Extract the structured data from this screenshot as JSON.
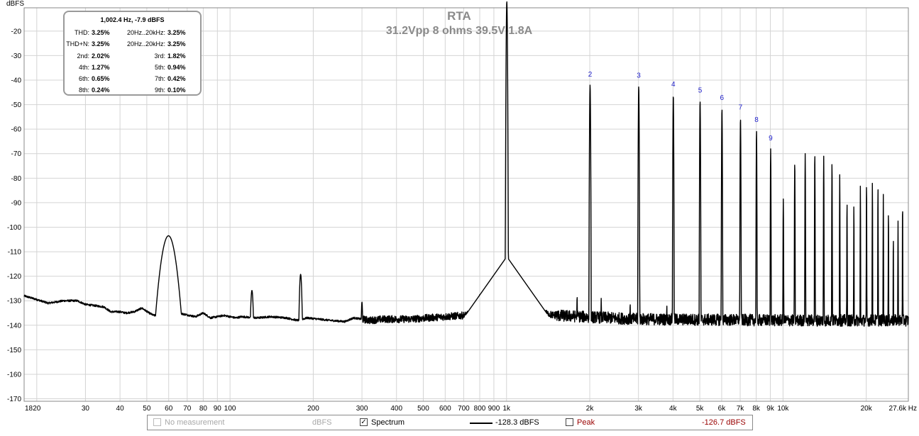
{
  "chart_data": {
    "type": "line",
    "title": "RTA",
    "subtitle": "31.2Vpp 8 ohms 39.5V 1.8A",
    "ylabel": "dBFS",
    "xlabel": "",
    "xscale": "log",
    "xlim": [
      18,
      28400
    ],
    "ylim": [
      -171,
      -10.5
    ],
    "grid": true,
    "y_ticks": [
      -20,
      -30,
      -40,
      -50,
      -60,
      -70,
      -80,
      -90,
      -100,
      -110,
      -120,
      -130,
      -140,
      -150,
      -160,
      -170
    ],
    "x_ticks": [
      {
        "v": 18,
        "l": "18"
      },
      {
        "v": 20,
        "l": "20"
      },
      {
        "v": 30,
        "l": "30"
      },
      {
        "v": 40,
        "l": "40"
      },
      {
        "v": 50,
        "l": "50"
      },
      {
        "v": 60,
        "l": "60"
      },
      {
        "v": 70,
        "l": "70"
      },
      {
        "v": 80,
        "l": "80"
      },
      {
        "v": 90,
        "l": "90"
      },
      {
        "v": 100,
        "l": "100"
      },
      {
        "v": 200,
        "l": "200"
      },
      {
        "v": 300,
        "l": "300"
      },
      {
        "v": 400,
        "l": "400"
      },
      {
        "v": 500,
        "l": "500"
      },
      {
        "v": 600,
        "l": "600"
      },
      {
        "v": 700,
        "l": "700"
      },
      {
        "v": 800,
        "l": "800"
      },
      {
        "v": 900,
        "l": "900"
      },
      {
        "v": 1000,
        "l": "1k"
      },
      {
        "v": 2000,
        "l": "2k"
      },
      {
        "v": 3000,
        "l": "3k"
      },
      {
        "v": 4000,
        "l": "4k"
      },
      {
        "v": 5000,
        "l": "5k"
      },
      {
        "v": 6000,
        "l": "6k"
      },
      {
        "v": 7000,
        "l": "7k"
      },
      {
        "v": 8000,
        "l": "8k"
      },
      {
        "v": 9000,
        "l": "9k"
      },
      {
        "v": 10000,
        "l": "10k"
      },
      {
        "v": 20000,
        "l": "20k"
      },
      {
        "v": 27600,
        "l": "27.6k Hz"
      }
    ],
    "series": [
      {
        "name": "Spectrum",
        "color": "#000000",
        "noise_floor": [
          [
            18,
            -128
          ],
          [
            20,
            -129.5
          ],
          [
            22,
            -131
          ],
          [
            25,
            -130
          ],
          [
            28,
            -130
          ],
          [
            30,
            -131.5
          ],
          [
            35,
            -132.5
          ],
          [
            37,
            -134.5
          ],
          [
            40,
            -134.5
          ],
          [
            42,
            -135
          ],
          [
            45,
            -134.5
          ],
          [
            48,
            -133
          ],
          [
            51,
            -135
          ],
          [
            53,
            -136
          ],
          [
            65,
            -135
          ],
          [
            75,
            -136.5
          ],
          [
            80,
            -135
          ],
          [
            85,
            -137
          ],
          [
            95,
            -136
          ],
          [
            105,
            -137
          ],
          [
            110,
            -136.5
          ],
          [
            125,
            -137
          ],
          [
            140,
            -136.5
          ],
          [
            160,
            -137
          ],
          [
            175,
            -138
          ],
          [
            190,
            -137
          ],
          [
            230,
            -138
          ],
          [
            260,
            -138.5
          ],
          [
            280,
            -137
          ],
          [
            320,
            -138
          ],
          [
            360,
            -137.5
          ],
          [
            450,
            -137.5
          ],
          [
            600,
            -136.5
          ],
          [
            700,
            -136
          ],
          [
            800,
            -135
          ],
          [
            900,
            -131
          ],
          [
            1500,
            -136
          ],
          [
            3000,
            -137.5
          ],
          [
            10000,
            -138
          ],
          [
            28400,
            -138
          ]
        ],
        "peaks": [
          {
            "f": 59.9,
            "db": -103.5,
            "width": 0.045
          },
          {
            "f": 120,
            "db": -125.8,
            "width": 0.009
          },
          {
            "f": 180,
            "db": -119.2,
            "width": 0.008
          },
          {
            "f": 300,
            "db": -130.5,
            "width": 0.005
          },
          {
            "f": 800,
            "db": -127.5,
            "width": 0.003
          },
          {
            "f": 1002.4,
            "db": -7.9,
            "width": 0.003,
            "skirt": true
          },
          {
            "f": 1800,
            "db": -128,
            "width": 0.002
          },
          {
            "f": 2005,
            "db": -42,
            "width": 0.0025
          },
          {
            "f": 2200,
            "db": -129,
            "width": 0.002
          },
          {
            "f": 2800,
            "db": -131,
            "width": 0.002
          },
          {
            "f": 3007,
            "db": -42.5,
            "width": 0.0022
          },
          {
            "f": 3800,
            "db": -132,
            "width": 0.002
          },
          {
            "f": 4010,
            "db": -46,
            "width": 0.002
          },
          {
            "f": 5012,
            "db": -48.5,
            "width": 0.002
          },
          {
            "f": 6014,
            "db": -51.5,
            "width": 0.0018
          },
          {
            "f": 7017,
            "db": -55.5,
            "width": 0.0018
          },
          {
            "f": 8019,
            "db": -60.5,
            "width": 0.0016
          },
          {
            "f": 9022,
            "db": -68,
            "width": 0.0015
          },
          {
            "f": 10024,
            "db": -88.5,
            "width": 0.0014
          },
          {
            "f": 11026,
            "db": -73.5,
            "width": 0.0014
          },
          {
            "f": 12029,
            "db": -70,
            "width": 0.0013
          },
          {
            "f": 13031,
            "db": -70,
            "width": 0.0013
          },
          {
            "f": 14034,
            "db": -71,
            "width": 0.0012
          },
          {
            "f": 15036,
            "db": -73.5,
            "width": 0.0012
          },
          {
            "f": 16038,
            "db": -78.5,
            "width": 0.0011
          },
          {
            "f": 17041,
            "db": -89.5,
            "width": 0.0011
          },
          {
            "f": 18043,
            "db": -90.5,
            "width": 0.001
          },
          {
            "f": 19046,
            "db": -83,
            "width": 0.001
          },
          {
            "f": 20048,
            "db": -81.5,
            "width": 0.001
          },
          {
            "f": 21050,
            "db": -81.5,
            "width": 0.001
          },
          {
            "f": 22053,
            "db": -83.5,
            "width": 0.001
          },
          {
            "f": 23055,
            "db": -86.5,
            "width": 0.001
          },
          {
            "f": 24058,
            "db": -93,
            "width": 0.001
          },
          {
            "f": 25060,
            "db": -103.5,
            "width": 0.001
          },
          {
            "f": 26062,
            "db": -97.5,
            "width": 0.001
          },
          {
            "f": 27065,
            "db": -90,
            "width": 0.001
          }
        ]
      }
    ],
    "harmonic_labels": [
      {
        "label": "2",
        "f": 2005,
        "db": -42
      },
      {
        "label": "3",
        "f": 3007,
        "db": -42.5
      },
      {
        "label": "4",
        "f": 4010,
        "db": -46
      },
      {
        "label": "5",
        "f": 5012,
        "db": -48.5
      },
      {
        "label": "6",
        "f": 6014,
        "db": -51.5
      },
      {
        "label": "7",
        "f": 7017,
        "db": -55.5
      },
      {
        "label": "8",
        "f": 8019,
        "db": -60.5
      },
      {
        "label": "9",
        "f": 9022,
        "db": -68
      }
    ]
  },
  "harmonics_box": {
    "header": "1,002.4 Hz, -7.9 dBFS",
    "rows": [
      {
        "l1": "THD:",
        "v1": "3.25%",
        "l2": "20Hz..20kHz:",
        "v2": "3.25%"
      },
      {
        "l1": "THD+N:",
        "v1": "3.25%",
        "l2": "20Hz..20kHz:",
        "v2": "3.25%"
      },
      {
        "l1": "2nd:",
        "v1": "2.02%",
        "l2": "3rd:",
        "v2": "1.82%"
      },
      {
        "l1": "4th:",
        "v1": "1.27%",
        "l2": "5th:",
        "v2": "0.94%"
      },
      {
        "l1": "6th:",
        "v1": "0.65%",
        "l2": "7th:",
        "v2": "0.42%"
      },
      {
        "l1": "8th:",
        "v1": "0.24%",
        "l2": "9th:",
        "v2": "0.10%"
      }
    ]
  },
  "legend": {
    "no_measurement": "No measurement",
    "no_measurement_unit": "dBFS",
    "spectrum": "Spectrum",
    "spectrum_value": "-128.3 dBFS",
    "peak": "Peak",
    "peak_value": "-126.7 dBFS",
    "spectrum_checked": "✓"
  },
  "colors": {
    "grid": "#d4d4d4",
    "trace": "#000000",
    "harmonic_label": "#2222cc",
    "title": "#8a8a8a",
    "peak": "#990000"
  }
}
